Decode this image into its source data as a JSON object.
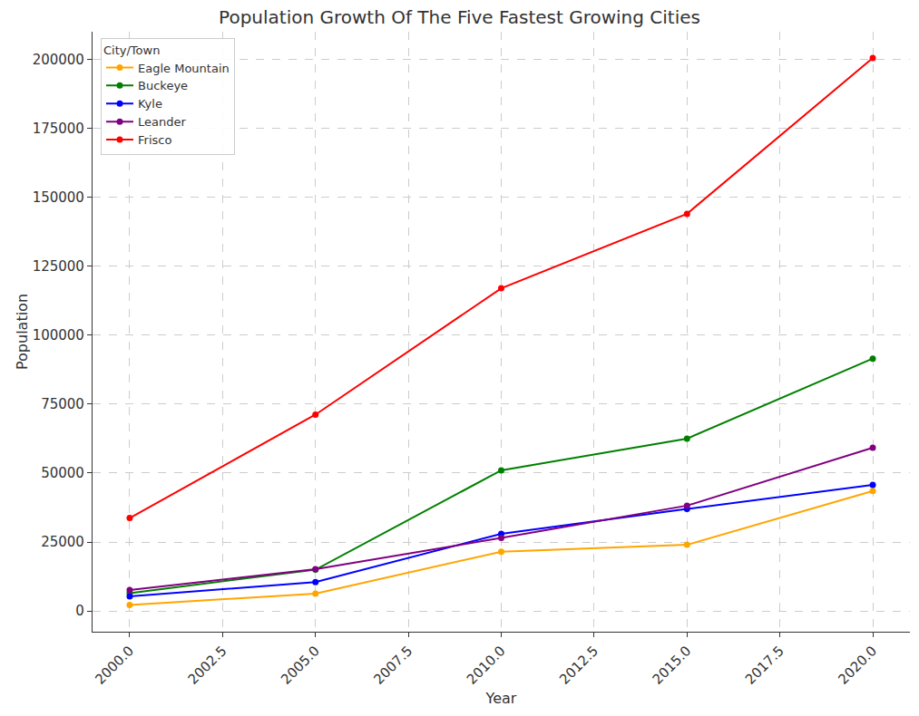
{
  "chart_data": {
    "type": "line",
    "title": "Population Growth Of The Five Fastest Growing Cities",
    "x_label": "Year",
    "y_label": "Population",
    "legend_title": "City/Town",
    "legend": "upper left",
    "grid": true,
    "marker": "circle",
    "line_style": "solid",
    "x": [
      2000,
      2005,
      2010,
      2015,
      2020
    ],
    "xlim": [
      1999,
      2021
    ],
    "xticks": [
      {
        "value": 2000,
        "label": "2000.0"
      },
      {
        "value": 2002.5,
        "label": "2002.5"
      },
      {
        "value": 2005,
        "label": "2005.0"
      },
      {
        "value": 2007.5,
        "label": "2007.5"
      },
      {
        "value": 2010,
        "label": "2010.0"
      },
      {
        "value": 2012.5,
        "label": "2012.5"
      },
      {
        "value": 2015,
        "label": "2015.0"
      },
      {
        "value": 2017.5,
        "label": "2017.5"
      },
      {
        "value": 2020,
        "label": "2020.0"
      }
    ],
    "ylim": [
      -7500,
      210000
    ],
    "yticks": [
      0,
      25000,
      50000,
      75000,
      100000,
      125000,
      150000,
      175000,
      200000
    ],
    "series": [
      {
        "name": "Eagle Mountain",
        "color": "orange",
        "values": [
          2200,
          6300,
          21500,
          24000,
          43500
        ]
      },
      {
        "name": "Buckeye",
        "color": "green",
        "values": [
          6500,
          15000,
          51000,
          62500,
          91500
        ]
      },
      {
        "name": "Kyle",
        "color": "blue",
        "values": [
          5300,
          10500,
          28000,
          37000,
          45700
        ]
      },
      {
        "name": "Leander",
        "color": "purple",
        "values": [
          7600,
          15200,
          26500,
          38200,
          59200
        ]
      },
      {
        "name": "Frisco",
        "color": "red",
        "values": [
          33700,
          71200,
          117000,
          144000,
          200500
        ]
      }
    ]
  }
}
